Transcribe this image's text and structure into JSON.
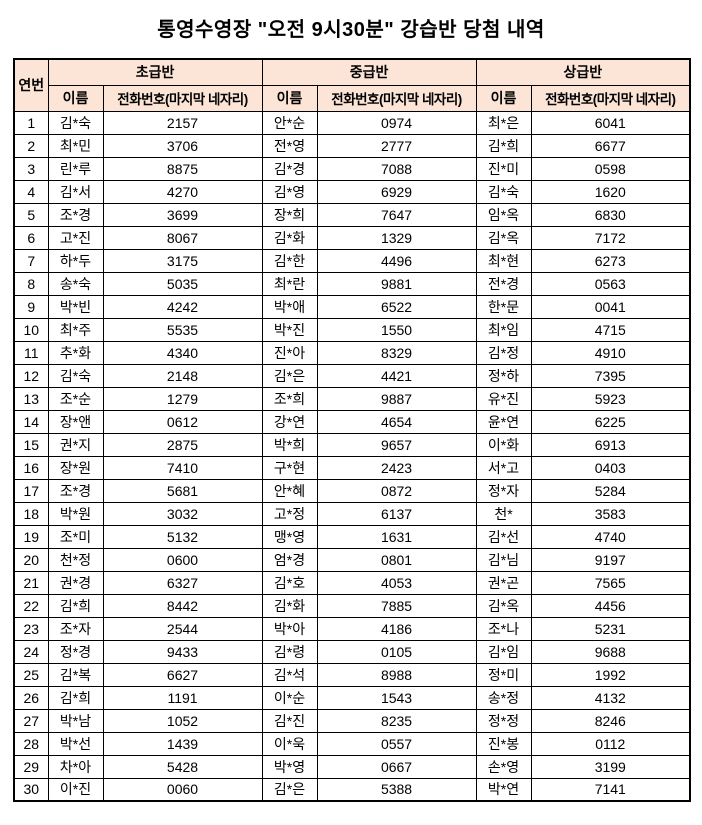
{
  "title": "통영수영장 \"오전 9시30분\" 강습반 당첨 내역",
  "colors": {
    "header_bg": "#FCE4D6",
    "border": "#000000"
  },
  "table": {
    "serial_header": "연번",
    "groups": [
      {
        "label": "초급반",
        "name_header": "이름",
        "phone_header": "전화번호(마지막 네자리)"
      },
      {
        "label": "중급반",
        "name_header": "이름",
        "phone_header": "전화번호(마지막 네자리)"
      },
      {
        "label": "상급반",
        "name_header": "이름",
        "phone_header": "전화번호(마지막 네자리)"
      }
    ],
    "rows": [
      [
        "1",
        "김*숙",
        "2157",
        "안*순",
        "0974",
        "최*은",
        "6041"
      ],
      [
        "2",
        "최*민",
        "3706",
        "전*영",
        "2777",
        "김*희",
        "6677"
      ],
      [
        "3",
        "린*루",
        "8875",
        "김*경",
        "7088",
        "진*미",
        "0598"
      ],
      [
        "4",
        "김*서",
        "4270",
        "김*영",
        "6929",
        "김*숙",
        "1620"
      ],
      [
        "5",
        "조*경",
        "3699",
        "장*희",
        "7647",
        "임*옥",
        "6830"
      ],
      [
        "6",
        "고*진",
        "8067",
        "김*화",
        "1329",
        "김*옥",
        "7172"
      ],
      [
        "7",
        "하*두",
        "3175",
        "김*한",
        "4496",
        "최*현",
        "6273"
      ],
      [
        "8",
        "송*숙",
        "5035",
        "최*란",
        "9881",
        "전*경",
        "0563"
      ],
      [
        "9",
        "박*빈",
        "4242",
        "박*애",
        "6522",
        "한*문",
        "0041"
      ],
      [
        "10",
        "최*주",
        "5535",
        "박*진",
        "1550",
        "최*임",
        "4715"
      ],
      [
        "11",
        "추*화",
        "4340",
        "진*아",
        "8329",
        "김*정",
        "4910"
      ],
      [
        "12",
        "김*숙",
        "2148",
        "김*은",
        "4421",
        "정*하",
        "7395"
      ],
      [
        "13",
        "조*순",
        "1279",
        "조*희",
        "9887",
        "유*진",
        "5923"
      ],
      [
        "14",
        "장*앤",
        "0612",
        "강*연",
        "4654",
        "윤*연",
        "6225"
      ],
      [
        "15",
        "권*지",
        "2875",
        "박*희",
        "9657",
        "이*화",
        "6913"
      ],
      [
        "16",
        "장*원",
        "7410",
        "구*현",
        "2423",
        "서*고",
        "0403"
      ],
      [
        "17",
        "조*경",
        "5681",
        "안*혜",
        "0872",
        "정*자",
        "5284"
      ],
      [
        "18",
        "박*원",
        "3032",
        "고*정",
        "6137",
        "천*",
        "3583"
      ],
      [
        "19",
        "조*미",
        "5132",
        "맹*영",
        "1631",
        "김*선",
        "4740"
      ],
      [
        "20",
        "천*정",
        "0600",
        "엄*경",
        "0801",
        "김*님",
        "9197"
      ],
      [
        "21",
        "권*경",
        "6327",
        "김*호",
        "4053",
        "권*곤",
        "7565"
      ],
      [
        "22",
        "김*희",
        "8442",
        "김*화",
        "7885",
        "김*옥",
        "4456"
      ],
      [
        "23",
        "조*자",
        "2544",
        "박*아",
        "4186",
        "조*나",
        "5231"
      ],
      [
        "24",
        "정*경",
        "9433",
        "김*령",
        "0105",
        "김*임",
        "9688"
      ],
      [
        "25",
        "김*복",
        "6627",
        "김*석",
        "8988",
        "정*미",
        "1992"
      ],
      [
        "26",
        "김*희",
        "1191",
        "이*순",
        "1543",
        "송*정",
        "4132"
      ],
      [
        "27",
        "박*남",
        "1052",
        "김*진",
        "8235",
        "정*정",
        "8246"
      ],
      [
        "28",
        "박*선",
        "1439",
        "이*욱",
        "0557",
        "진*봉",
        "0112"
      ],
      [
        "29",
        "차*아",
        "5428",
        "박*영",
        "0667",
        "손*영",
        "3199"
      ],
      [
        "30",
        "이*진",
        "0060",
        "김*은",
        "5388",
        "박*연",
        "7141"
      ]
    ]
  }
}
